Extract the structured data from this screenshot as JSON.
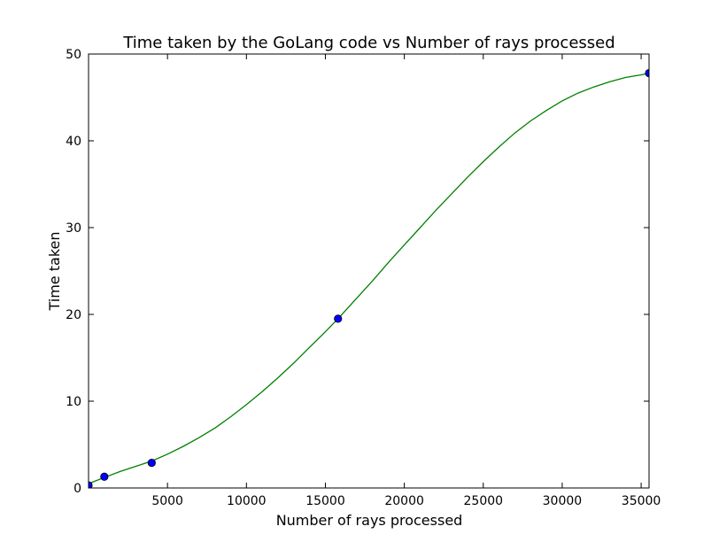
{
  "chart_data": {
    "type": "line",
    "title": "Time taken by the GoLang code vs Number of rays processed",
    "xlabel": "Number of rays processed",
    "ylabel": "Time taken",
    "xlim": [
      0,
      35500
    ],
    "ylim": [
      0,
      50
    ],
    "x_ticks": [
      5000,
      10000,
      15000,
      20000,
      25000,
      30000,
      35000
    ],
    "x_tick_labels": [
      "5000",
      "10000",
      "15000",
      "20000",
      "25000",
      "30000",
      "35000"
    ],
    "y_ticks": [
      0,
      10,
      20,
      30,
      40,
      50
    ],
    "y_tick_labels": [
      "0",
      "10",
      "20",
      "30",
      "40",
      "50"
    ],
    "grid": false,
    "series": [
      {
        "kind": "points",
        "color": "#0000ff",
        "x": [
          0,
          1000,
          4000,
          15800,
          35500
        ],
        "y": [
          0.3,
          1.3,
          2.9,
          19.5,
          47.8
        ]
      },
      {
        "kind": "fit_line",
        "color": "#008000",
        "x": [
          0,
          1000,
          2000,
          3000,
          4000,
          5000,
          6000,
          7000,
          8000,
          9000,
          10000,
          11000,
          12000,
          13000,
          14000,
          15000,
          15800,
          17000,
          18000,
          19000,
          20000,
          21000,
          22000,
          23000,
          24000,
          25000,
          26000,
          27000,
          28000,
          29000,
          30000,
          31000,
          32000,
          33000,
          34000,
          35000,
          35500
        ],
        "y": [
          0.5,
          1.2,
          1.9,
          2.5,
          3.1,
          3.9,
          4.8,
          5.8,
          6.9,
          8.2,
          9.6,
          11.1,
          12.7,
          14.4,
          16.2,
          18.0,
          19.5,
          21.9,
          23.9,
          26.0,
          28.0,
          30.0,
          32.0,
          33.9,
          35.8,
          37.6,
          39.3,
          40.9,
          42.3,
          43.5,
          44.6,
          45.5,
          46.2,
          46.8,
          47.3,
          47.6,
          47.8
        ]
      }
    ]
  }
}
